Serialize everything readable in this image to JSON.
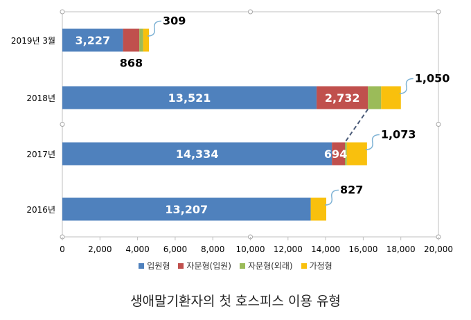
{
  "chart_data": {
    "type": "bar",
    "orientation": "horizontal",
    "stacked": true,
    "categories": [
      "2019년 3월",
      "2018년",
      "2017년",
      "2016년"
    ],
    "series": [
      {
        "name": "입원형",
        "color": "#4f81bd",
        "values": [
          3227,
          13521,
          14334,
          13207
        ]
      },
      {
        "name": "자문형(입원)",
        "color": "#c0504d",
        "values": [
          868,
          2732,
          694,
          0
        ]
      },
      {
        "name": "자문형(외래)",
        "color": "#9bbb59",
        "values": [
          200,
          700,
          100,
          0
        ]
      },
      {
        "name": "가정형",
        "color": "#f9c00d",
        "values": [
          309,
          1050,
          1073,
          827
        ]
      }
    ],
    "data_labels": [
      {
        "category": "2019년 3월",
        "series": "입원형",
        "text": "3,227"
      },
      {
        "category": "2019년 3월",
        "series": "자문형(입원)",
        "text": "868"
      },
      {
        "category": "2019년 3월",
        "series": "가정형",
        "text": "309"
      },
      {
        "category": "2018년",
        "series": "입원형",
        "text": "13,521"
      },
      {
        "category": "2018년",
        "series": "자문형(입원)",
        "text": "2,732"
      },
      {
        "category": "2018년",
        "series": "가정형",
        "text": "1,050"
      },
      {
        "category": "2017년",
        "series": "입원형",
        "text": "14,334"
      },
      {
        "category": "2017년",
        "series": "자문형(입원)",
        "text": "694"
      },
      {
        "category": "2017년",
        "series": "가정형",
        "text": "1,073"
      },
      {
        "category": "2016년",
        "series": "입원형",
        "text": "13,207"
      },
      {
        "category": "2016년",
        "series": "가정형",
        "text": "827"
      }
    ],
    "xlim": [
      0,
      20000
    ],
    "xticks": [
      0,
      2000,
      4000,
      6000,
      8000,
      10000,
      12000,
      14000,
      16000,
      18000,
      20000
    ],
    "xtick_labels": [
      "0",
      "2,000",
      "4,000",
      "6,000",
      "8,000",
      "10,000",
      "12,000",
      "14,000",
      "16,000",
      "18,000",
      "20,000"
    ],
    "grid": false,
    "legend_position": "bottom",
    "connector": "dashed line between 2017 and 2018 자문형(입원) segments"
  },
  "caption": "생애말기환자의 첫 호스피스 이용 유형"
}
